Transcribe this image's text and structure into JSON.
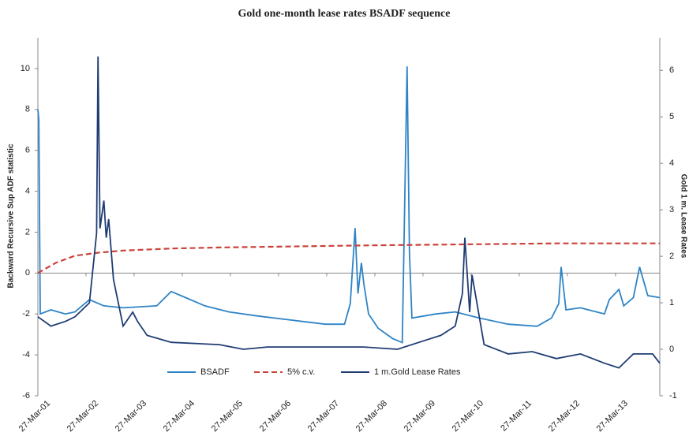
{
  "chart_data": {
    "type": "line",
    "title": "Gold one-month lease rates BSADF sequence",
    "y_label": "Backward Recursive Sup ADF statistic",
    "y2_label": "Gold 1 m. Lease Rates",
    "xlim": [
      2001.23,
      2014.15
    ],
    "xticks": [
      {
        "value": 2001.23,
        "label": "27-Mar-01"
      },
      {
        "value": 2002.23,
        "label": "27-Mar-02"
      },
      {
        "value": 2003.23,
        "label": "27-Mar-03"
      },
      {
        "value": 2004.23,
        "label": "27-Mar-04"
      },
      {
        "value": 2005.23,
        "label": "27-Mar-05"
      },
      {
        "value": 2006.23,
        "label": "27-Mar-06"
      },
      {
        "value": 2007.23,
        "label": "27-Mar-07"
      },
      {
        "value": 2008.23,
        "label": "27-Mar-08"
      },
      {
        "value": 2009.23,
        "label": "27-Mar-09"
      },
      {
        "value": 2010.23,
        "label": "27-Mar-10"
      },
      {
        "value": 2011.23,
        "label": "27-Mar-11"
      },
      {
        "value": 2012.23,
        "label": "27-Mar-12"
      },
      {
        "value": 2013.23,
        "label": "27-Mar-13"
      }
    ],
    "ylim": [
      -6,
      11.5
    ],
    "yticks": [
      -6,
      -4,
      -2,
      0,
      2,
      4,
      6,
      8,
      10
    ],
    "y2lim": [
      -1,
      6.7
    ],
    "y2ticks": [
      -1,
      0,
      1,
      2,
      3,
      4,
      5,
      6
    ],
    "legend": "bottom",
    "series": [
      {
        "name": "BSADF",
        "color": "#2f84c6",
        "dash": false,
        "x": [
          2001.23,
          2001.25,
          2001.28,
          2001.5,
          2001.8,
          2002.0,
          2002.3,
          2002.6,
          2003.0,
          2003.7,
          2004.0,
          2004.3,
          2004.7,
          2005.2,
          2005.8,
          2006.5,
          2007.2,
          2007.6,
          2007.72,
          2007.82,
          2007.88,
          2007.95,
          2008.0,
          2008.1,
          2008.3,
          2008.6,
          2008.8,
          2008.9,
          2008.95,
          2009.0,
          2009.5,
          2009.9,
          2010.4,
          2011.0,
          2011.6,
          2011.9,
          2012.05,
          2012.1,
          2012.2,
          2012.5,
          2013.0,
          2013.1,
          2013.3,
          2013.4,
          2013.6,
          2013.73,
          2013.9,
          2014.15
        ],
        "values": [
          8,
          7.5,
          -2,
          -1.8,
          -2,
          -1.9,
          -1.3,
          -1.6,
          -1.7,
          -1.6,
          -0.9,
          -1.2,
          -1.6,
          -1.9,
          -2.1,
          -2.3,
          -2.5,
          -2.5,
          -1.5,
          2.2,
          -1,
          0.5,
          -0.5,
          -2,
          -2.7,
          -3.2,
          -3.4,
          10.1,
          1,
          -2.2,
          -2,
          -1.9,
          -2.2,
          -2.5,
          -2.6,
          -2.2,
          -1.5,
          0.3,
          -1.8,
          -1.7,
          -2,
          -1.3,
          -0.8,
          -1.6,
          -1.2,
          0.3,
          -1.1,
          -1.2
        ]
      },
      {
        "name": "5% c.v.",
        "color": "#c9423a",
        "dash": true,
        "x": [
          2001.23,
          2001.6,
          2002.0,
          2002.5,
          2003.0,
          2004.0,
          2005.0,
          2006.5,
          2008.0,
          2010.0,
          2012.0,
          2014.15
        ],
        "values": [
          0,
          0.5,
          0.85,
          1.0,
          1.1,
          1.2,
          1.25,
          1.3,
          1.35,
          1.4,
          1.45,
          1.45
        ]
      },
      {
        "name": "1 m.Gold Lease Rates",
        "color": "#1f3c73",
        "dash": false,
        "axis": "y2",
        "x": [
          2001.23,
          2001.5,
          2001.8,
          2002.0,
          2002.3,
          2002.45,
          2002.48,
          2002.52,
          2002.6,
          2002.65,
          2002.7,
          2002.8,
          2003.0,
          2003.2,
          2003.3,
          2003.5,
          2004.0,
          2005.0,
          2005.5,
          2006.0,
          2007.0,
          2008.0,
          2008.7,
          2009.3,
          2009.6,
          2009.9,
          2010.05,
          2010.1,
          2010.2,
          2010.25,
          2010.5,
          2011.0,
          2011.5,
          2012.0,
          2012.5,
          2013.0,
          2013.3,
          2013.6,
          2014.0,
          2014.15
        ],
        "values": [
          0.7,
          0.5,
          0.6,
          0.7,
          1.0,
          2.5,
          6.3,
          2.6,
          3.2,
          2.4,
          2.8,
          1.5,
          0.5,
          0.8,
          0.6,
          0.3,
          0.15,
          0.1,
          0.0,
          0.05,
          0.05,
          0.05,
          0.0,
          0.2,
          0.3,
          0.5,
          1.2,
          2.4,
          0.8,
          1.6,
          0.1,
          -0.1,
          -0.05,
          -0.2,
          -0.1,
          -0.3,
          -0.4,
          -0.1,
          -0.1,
          -0.3
        ]
      }
    ]
  }
}
